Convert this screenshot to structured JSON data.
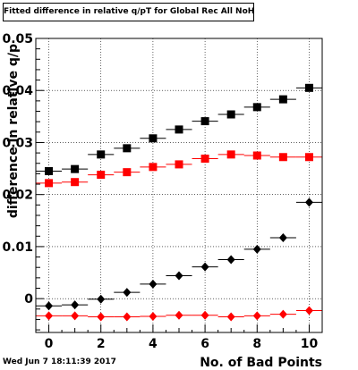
{
  "title": "Fitted difference in relative q/pT for Global Rec All NoHits",
  "footer": "Wed Jun  7 18:11:39 2017",
  "chart_data": {
    "type": "scatter",
    "xlabel": "No. of Bad Points",
    "ylabel": "difference in relative q/p",
    "xlim": [
      -0.5,
      10.5
    ],
    "ylim": [
      -0.0065,
      0.05
    ],
    "grid": true,
    "x_ticks": [
      0,
      2,
      4,
      6,
      8,
      10
    ],
    "y_ticks": [
      {
        "value": 0,
        "label": "0"
      },
      {
        "value": 0.01,
        "label": "0.01"
      },
      {
        "value": 0.02,
        "label": "0.02"
      },
      {
        "value": 0.03,
        "label": "0.03"
      },
      {
        "value": 0.04,
        "label": "0.04"
      },
      {
        "value": 0.05,
        "label": "0.05"
      }
    ],
    "x": [
      0,
      1,
      2,
      3,
      4,
      5,
      6,
      7,
      8,
      9,
      10
    ],
    "series": [
      {
        "marker": "square",
        "color": "#000000",
        "values": [
          0.0245,
          0.0249,
          0.0277,
          0.0289,
          0.0308,
          0.0325,
          0.0341,
          0.0354,
          0.0368,
          0.0383,
          0.0405
        ]
      },
      {
        "marker": "square",
        "color": "#ff0000",
        "values": [
          0.0222,
          0.0224,
          0.0238,
          0.0243,
          0.0253,
          0.0258,
          0.0269,
          0.0277,
          0.0275,
          0.0272,
          0.0272
        ]
      },
      {
        "marker": "diamond",
        "color": "#000000",
        "values": [
          -0.0014,
          -0.0012,
          -0.0001,
          0.0012,
          0.0028,
          0.0044,
          0.0061,
          0.0075,
          0.0095,
          0.0117,
          0.0185
        ]
      },
      {
        "marker": "diamond",
        "color": "#ff0000",
        "values": [
          -0.0033,
          -0.0033,
          -0.0035,
          -0.0035,
          -0.0034,
          -0.0032,
          -0.0032,
          -0.0035,
          -0.0033,
          -0.003,
          -0.0023
        ]
      }
    ]
  }
}
